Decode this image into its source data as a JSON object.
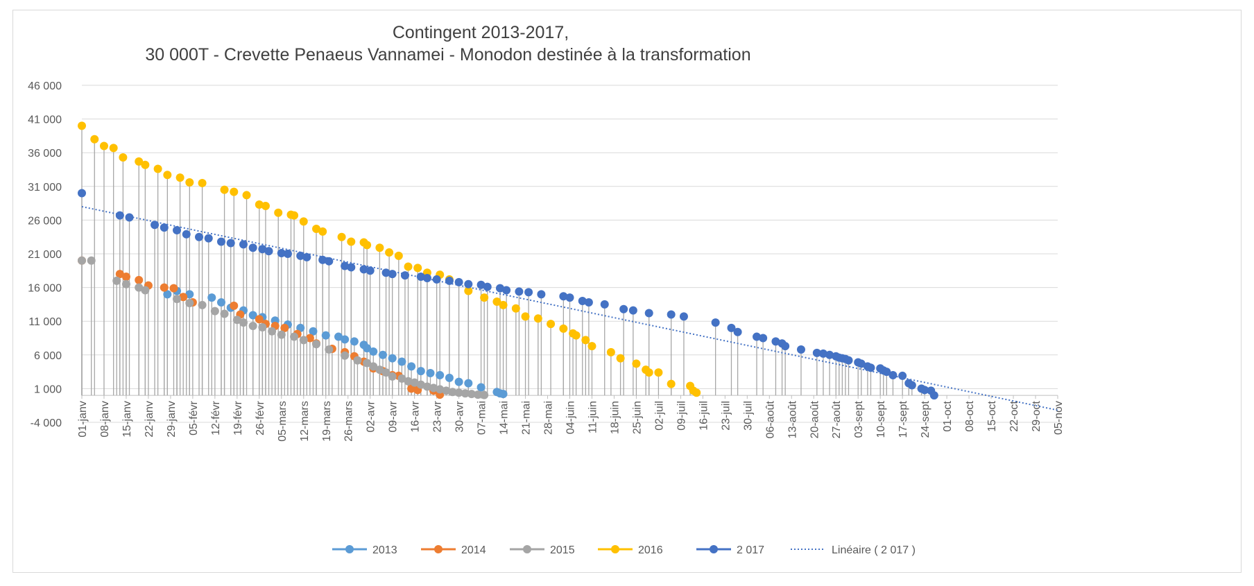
{
  "chart_data": {
    "type": "scatter",
    "title": [
      "Contingent 2013-2017,",
      "30 000T - Crevette Penaeus Vannamei - Monodon destinée à la transformation"
    ],
    "xlabel": "",
    "ylabel": "",
    "ylim": [
      -4000,
      46000
    ],
    "yticks": [
      "-4 000",
      "1 000",
      "6 000",
      "11 000",
      "16 000",
      "21 000",
      "26 000",
      "31 000",
      "36 000",
      "41 000",
      "46 000"
    ],
    "x_axis_type": "date",
    "xlim": [
      "01-janv",
      "05-nov"
    ],
    "xticks": [
      "01-janv",
      "08-janv",
      "15-janv",
      "22-janv",
      "29-janv",
      "05-févr",
      "12-févr",
      "19-févr",
      "26-févr",
      "05-mars",
      "12-mars",
      "19-mars",
      "26-mars",
      "02-avr",
      "09-avr",
      "16-avr",
      "23-avr",
      "30-avr",
      "07-mai",
      "14-mai",
      "21-mai",
      "28-mai",
      "04-juin",
      "11-juin",
      "18-juin",
      "25-juin",
      "02-juil",
      "09-juil",
      "16-juil",
      "23-juil",
      "30-juil",
      "06-août",
      "13-août",
      "20-août",
      "27-août",
      "03-sept",
      "10-sept",
      "17-sept",
      "24-sept",
      "01-oct",
      "08-oct",
      "15-oct",
      "22-oct",
      "29-oct",
      "05-nov"
    ],
    "grid": true,
    "legend_position": "bottom",
    "drop_lines": true,
    "series": [
      {
        "name": "2013",
        "color": "#5b9bd5",
        "x": [
          "28-janv",
          "31-janv",
          "04-févr",
          "11-févr",
          "14-févr",
          "17-févr",
          "21-févr",
          "24-févr",
          "27-févr",
          "03-mars",
          "07-mars",
          "11-mars",
          "15-mars",
          "19-mars",
          "23-mars",
          "25-mars",
          "28-mars",
          "31-mars",
          "01-avr",
          "03-avr",
          "06-avr",
          "09-avr",
          "12-avr",
          "15-avr",
          "18-avr",
          "21-avr",
          "24-avr",
          "27-avr",
          "30-avr",
          "03-mai",
          "07-mai",
          "12-mai",
          "13-mai",
          "14-mai"
        ],
        "y": [
          15000,
          15500,
          15000,
          14500,
          13800,
          13000,
          12600,
          11900,
          11600,
          11100,
          10500,
          10000,
          9500,
          8900,
          8700,
          8300,
          8000,
          7500,
          7000,
          6500,
          6000,
          5500,
          5000,
          4300,
          3600,
          3300,
          3000,
          2600,
          2000,
          1800,
          1200,
          500,
          300,
          200
        ]
      },
      {
        "name": "2014",
        "color": "#ed7d31",
        "x": [
          "01-janv",
          "13-janv",
          "15-janv",
          "19-janv",
          "22-janv",
          "27-janv",
          "30-janv",
          "02-févr",
          "05-févr",
          "18-févr",
          "20-févr",
          "26-févr",
          "28-févr",
          "03-mars",
          "06-mars",
          "10-mars",
          "14-mars",
          "16-mars",
          "21-mars",
          "25-mars",
          "28-mars",
          "31-mars",
          "03-avr",
          "06-avr",
          "09-avr",
          "11-avr",
          "15-avr",
          "17-avr",
          "22-avr",
          "24-avr"
        ],
        "y": [
          20000,
          18000,
          17600,
          17100,
          16300,
          16000,
          15900,
          14600,
          13800,
          13300,
          12000,
          11300,
          10600,
          10300,
          10000,
          9100,
          8500,
          7700,
          6900,
          6400,
          5800,
          5000,
          4000,
          3600,
          3000,
          2900,
          1000,
          800,
          700,
          100
        ]
      },
      {
        "name": "2015",
        "color": "#a5a5a5",
        "x": [
          "01-janv",
          "04-janv",
          "12-janv",
          "15-janv",
          "19-janv",
          "21-janv",
          "31-janv",
          "04-févr",
          "08-févr",
          "12-févr",
          "15-févr",
          "19-févr",
          "21-févr",
          "24-févr",
          "27-févr",
          "02-mars",
          "05-mars",
          "09-mars",
          "12-mars",
          "16-mars",
          "20-mars",
          "25-mars",
          "29-mars",
          "01-avr",
          "03-avr",
          "05-avr",
          "07-avr",
          "09-avr",
          "12-avr",
          "14-avr",
          "16-avr",
          "18-avr",
          "20-avr",
          "22-avr",
          "24-avr",
          "26-avr",
          "28-avr",
          "30-avr",
          "02-mai",
          "04-mai",
          "06-mai",
          "08-mai"
        ],
        "y": [
          20000,
          20000,
          17000,
          16500,
          16000,
          15600,
          14300,
          13700,
          13400,
          12500,
          12100,
          11200,
          10800,
          10300,
          10100,
          9500,
          9000,
          8700,
          8200,
          7600,
          6800,
          5900,
          5200,
          4800,
          4300,
          3800,
          3400,
          2800,
          2500,
          2100,
          1900,
          1600,
          1300,
          1100,
          900,
          700,
          500,
          400,
          300,
          200,
          100,
          50
        ]
      },
      {
        "name": "2016",
        "color": "#ffc000",
        "x": [
          "01-janv",
          "05-janv",
          "08-janv",
          "11-janv",
          "14-janv",
          "19-janv",
          "21-janv",
          "25-janv",
          "28-janv",
          "01-févr",
          "04-févr",
          "08-févr",
          "15-févr",
          "18-févr",
          "22-févr",
          "26-févr",
          "28-févr",
          "04-mars",
          "08-mars",
          "09-mars",
          "12-mars",
          "16-mars",
          "18-mars",
          "24-mars",
          "27-mars",
          "31-mars",
          "01-avr",
          "05-avr",
          "08-avr",
          "11-avr",
          "14-avr",
          "17-avr",
          "20-avr",
          "24-avr",
          "27-avr",
          "03-mai",
          "08-mai",
          "12-mai",
          "14-mai",
          "18-mai",
          "21-mai",
          "25-mai",
          "29-mai",
          "02-juin",
          "05-juin",
          "06-juin",
          "09-juin",
          "11-juin",
          "17-juin",
          "20-juin",
          "25-juin",
          "28-juin",
          "29-juin",
          "02-juil",
          "06-juil",
          "12-juil",
          "13-juil",
          "14-juil"
        ],
        "y": [
          40000,
          38000,
          37000,
          36700,
          35300,
          34700,
          34200,
          33600,
          32700,
          32300,
          31600,
          31500,
          30500,
          30200,
          29700,
          28300,
          28100,
          27100,
          26800,
          26700,
          25800,
          24700,
          24300,
          23500,
          22800,
          22700,
          22300,
          21900,
          21200,
          20700,
          19100,
          18900,
          18200,
          17900,
          17200,
          15500,
          14500,
          13900,
          13400,
          12900,
          11700,
          11400,
          10600,
          9900,
          9200,
          8900,
          8200,
          7300,
          6400,
          5500,
          4700,
          3800,
          3400,
          3400,
          1700,
          1400,
          700,
          400
        ]
      },
      {
        "name": "2 017",
        "color": "#4472c4",
        "x": [
          "01-janv",
          "13-janv",
          "16-janv",
          "24-janv",
          "27-janv",
          "31-janv",
          "03-févr",
          "07-févr",
          "10-févr",
          "14-févr",
          "17-févr",
          "21-févr",
          "24-févr",
          "27-févr",
          "01-mars",
          "05-mars",
          "07-mars",
          "11-mars",
          "13-mars",
          "18-mars",
          "20-mars",
          "25-mars",
          "27-mars",
          "31-mars",
          "02-avr",
          "07-avr",
          "09-avr",
          "13-avr",
          "18-avr",
          "20-avr",
          "23-avr",
          "27-avr",
          "30-avr",
          "03-mai",
          "07-mai",
          "09-mai",
          "13-mai",
          "15-mai",
          "19-mai",
          "22-mai",
          "26-mai",
          "02-juin",
          "04-juin",
          "08-juin",
          "10-juin",
          "15-juin",
          "21-juin",
          "24-juin",
          "29-juin",
          "06-juil",
          "10-juil",
          "20-juil",
          "25-juil",
          "27-juil",
          "02-août",
          "04-août",
          "08-août",
          "10-août",
          "11-août",
          "16-août",
          "21-août",
          "23-août",
          "25-août",
          "27-août",
          "28-août",
          "29-août",
          "30-août",
          "31-août",
          "03-sept",
          "04-sept",
          "06-sept",
          "07-sept",
          "10-sept",
          "11-sept",
          "12-sept",
          "14-sept",
          "17-sept",
          "19-sept",
          "20-sept",
          "23-sept",
          "24-sept",
          "26-sept",
          "27-sept"
        ],
        "y": [
          30000,
          26700,
          26400,
          25300,
          24900,
          24500,
          23900,
          23500,
          23300,
          22800,
          22600,
          22400,
          21900,
          21700,
          21400,
          21100,
          21000,
          20700,
          20500,
          20100,
          19900,
          19200,
          19000,
          18700,
          18500,
          18200,
          18000,
          17800,
          17600,
          17400,
          17200,
          17000,
          16800,
          16500,
          16400,
          16100,
          15900,
          15600,
          15400,
          15300,
          15000,
          14700,
          14500,
          14000,
          13800,
          13500,
          12800,
          12600,
          12200,
          12000,
          11700,
          10800,
          10000,
          9400,
          8700,
          8500,
          8000,
          7700,
          7300,
          6800,
          6300,
          6200,
          6000,
          5800,
          5600,
          5500,
          5400,
          5200,
          4900,
          4700,
          4300,
          4100,
          4000,
          3700,
          3500,
          3000,
          2900,
          1800,
          1500,
          1000,
          800,
          700,
          0
        ]
      }
    ],
    "trendline": {
      "name": "Linéaire ( 2 017   )",
      "color": "#4472c4",
      "style": "dotted",
      "of_series": "2 017",
      "start": [
        "01-janv",
        28000
      ],
      "end": [
        "05-nov",
        -2200
      ]
    }
  }
}
